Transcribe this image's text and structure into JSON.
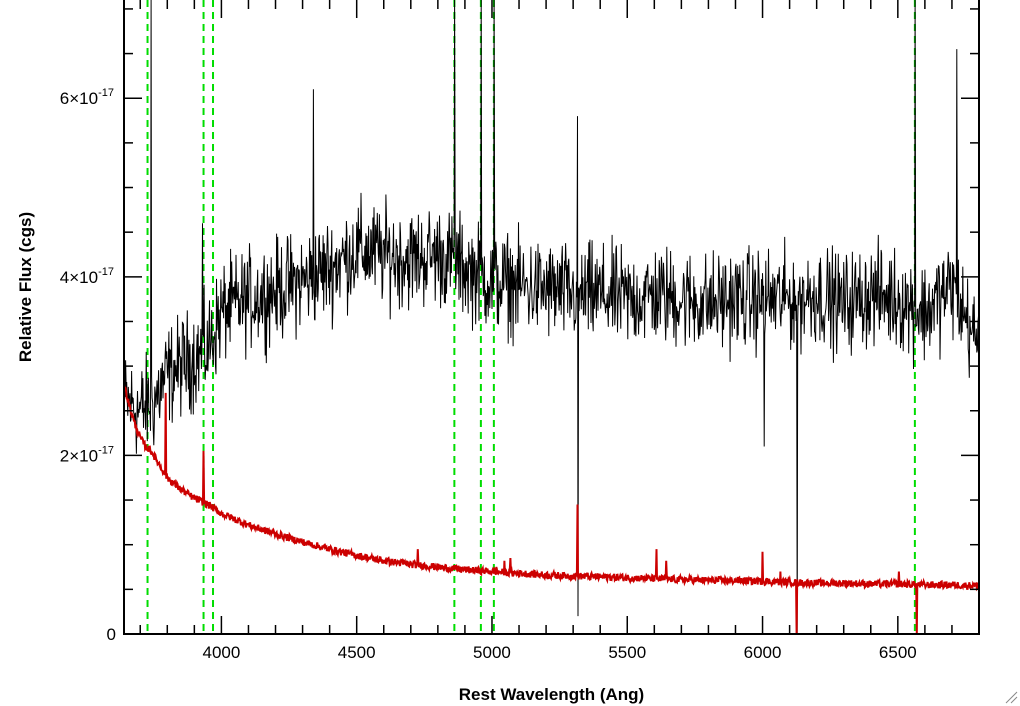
{
  "chart_data": {
    "type": "line",
    "xlabel": "Rest Wavelength (Ang)",
    "ylabel": "Relative Flux (cgs)",
    "xlim": [
      3640,
      6800
    ],
    "ylim": [
      0,
      7.1e-17
    ],
    "x_ticks": [
      {
        "value": 4000,
        "label": "4000"
      },
      {
        "value": 4500,
        "label": "4500"
      },
      {
        "value": 5000,
        "label": "5000"
      },
      {
        "value": 5500,
        "label": "5500"
      },
      {
        "value": 6000,
        "label": "6000"
      },
      {
        "value": 6500,
        "label": "6500"
      }
    ],
    "y_ticks": [
      {
        "value": 0,
        "label": "0",
        "exp": ""
      },
      {
        "value": 2e-17,
        "label": "2×10",
        "exp": "-17"
      },
      {
        "value": 4e-17,
        "label": "4×10",
        "exp": "-17"
      },
      {
        "value": 6e-17,
        "label": "6×10",
        "exp": "-17"
      }
    ],
    "grid": false,
    "line_colors": {
      "observed": "#000000",
      "model": "#cc0000",
      "line_markers": "#00dd00"
    },
    "vertical_lines": [
      3727,
      3934,
      3969,
      4861,
      4959,
      5007,
      6563
    ],
    "series": [
      {
        "key": "observed",
        "x": [
          3650,
          3700,
          3750,
          3800,
          3850,
          3900,
          3950,
          4000,
          4100,
          4200,
          4300,
          4400,
          4500,
          4600,
          4700,
          4800,
          4900,
          5000,
          5100,
          5200,
          5300,
          5400,
          5500,
          5600,
          5700,
          5800,
          5900,
          6000,
          6100,
          6200,
          6300,
          6400,
          6500,
          6600,
          6700,
          6800
        ],
        "y": [
          2.6e-17,
          2.5e-17,
          2.6e-17,
          2.9e-17,
          3e-17,
          3.1e-17,
          3.2e-17,
          3.6e-17,
          3.75e-17,
          3.85e-17,
          3.95e-17,
          4.1e-17,
          4.3e-17,
          4.25e-17,
          4.2e-17,
          4.25e-17,
          4.1e-17,
          3.95e-17,
          3.9e-17,
          3.85e-17,
          3.8e-17,
          3.8e-17,
          3.75e-17,
          3.8e-17,
          3.75e-17,
          3.7e-17,
          3.75e-17,
          3.75e-17,
          3.75e-17,
          3.8e-17,
          3.7e-17,
          3.8e-17,
          3.75e-17,
          3.6e-17,
          3.9e-17,
          3.2e-17
        ],
        "noise": 5.5e-18
      },
      {
        "key": "model",
        "x": [
          3640,
          3660,
          3680,
          3700,
          3720,
          3740,
          3760,
          3780,
          3800,
          3850,
          3900,
          3950,
          4000,
          4100,
          4200,
          4300,
          4400,
          4500,
          4600,
          4700,
          4800,
          4900,
          5000,
          5100,
          5200,
          5300,
          5400,
          5500,
          5600,
          5700,
          5800,
          5900,
          6000,
          6100,
          6200,
          6300,
          6400,
          6500,
          6600,
          6700,
          6800
        ],
        "y": [
          2.8e-17,
          2.55e-17,
          2.35e-17,
          2.2e-17,
          2.1e-17,
          2.05e-17,
          1.95e-17,
          1.85e-17,
          1.75e-17,
          1.62e-17,
          1.52e-17,
          1.45e-17,
          1.35e-17,
          1.22e-17,
          1.12e-17,
          1.03e-17,
          9.5e-18,
          8.8e-18,
          8.2e-18,
          7.8e-18,
          7.5e-18,
          7.2e-18,
          7e-18,
          6.8e-18,
          6.6e-18,
          6.5e-18,
          6.4e-18,
          6.3e-18,
          6.2e-18,
          6.1e-18,
          6e-18,
          6e-18,
          5.9e-18,
          5.8e-18,
          5.7e-18,
          5.7e-18,
          5.6e-18,
          5.6e-18,
          5.5e-18,
          5.5e-18,
          5.4e-18
        ]
      }
    ],
    "observed_spikes": [
      {
        "x": 3740,
        "y": 7.1e-17
      },
      {
        "x": 3930,
        "y": 4.6e-17
      },
      {
        "x": 4340,
        "y": 6.1e-17
      },
      {
        "x": 4862,
        "y": 7.1e-17
      },
      {
        "x": 4960,
        "y": 7.1e-17
      },
      {
        "x": 5008,
        "y": 7.1e-17
      },
      {
        "x": 5316,
        "y": 5.8e-17
      },
      {
        "x": 6563,
        "y": 7.1e-17
      },
      {
        "x": 6718,
        "y": 6.55e-17
      },
      {
        "x": 5318,
        "y": 2e-18
      },
      {
        "x": 6127,
        "y": 0.0
      },
      {
        "x": 6005,
        "y": 2.1e-17
      }
    ],
    "model_features": [
      {
        "x": 3794,
        "y": 2.7e-17
      },
      {
        "x": 3933,
        "y": 2.05e-17
      },
      {
        "x": 4725,
        "y": 9.5e-18
      },
      {
        "x": 5016,
        "y": 7.5e-18
      },
      {
        "x": 5046,
        "y": 8.2e-18
      },
      {
        "x": 5068,
        "y": 8.5e-18
      },
      {
        "x": 5315,
        "y": 1.45e-17
      },
      {
        "x": 5608,
        "y": 9.5e-18
      },
      {
        "x": 5643,
        "y": 8.2e-18
      },
      {
        "x": 5999,
        "y": 9.2e-18
      },
      {
        "x": 6066,
        "y": 7e-18
      },
      {
        "x": 6125,
        "y": 0.0
      },
      {
        "x": 6504,
        "y": 7e-18
      },
      {
        "x": 6570,
        "y": 0.0
      }
    ]
  }
}
